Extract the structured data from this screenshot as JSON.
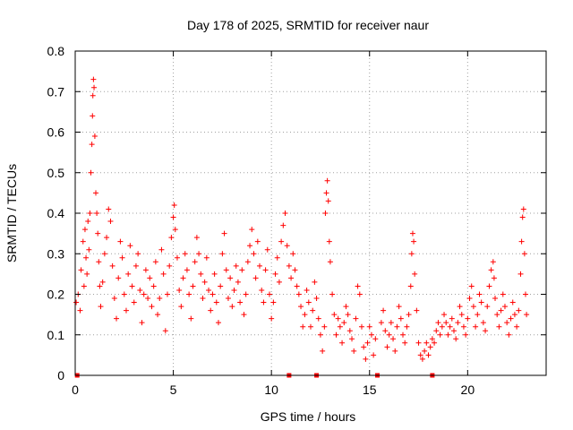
{
  "chart_data": {
    "type": "scatter",
    "title": "Day 178 of 2025, SRMTID for receiver naur",
    "xlabel": "GPS time / hours",
    "ylabel": "SRMTID / TECUs",
    "xlim": [
      0,
      24
    ],
    "ylim": [
      0,
      0.8
    ],
    "x_ticks": [
      0,
      5,
      10,
      15,
      20
    ],
    "y_ticks": [
      0,
      0.1,
      0.2,
      0.3,
      0.4,
      0.5,
      0.6,
      0.7,
      0.8
    ],
    "y_tick_labels": [
      "0",
      "0.1",
      "0.2",
      "0.3",
      "0.4",
      "0.5",
      "0.6",
      "0.7",
      "0.8"
    ],
    "grid": true,
    "marker": "plus",
    "series": [
      {
        "name": "SRMTID",
        "color": "#ff0000",
        "points": [
          [
            0.05,
            0.18
          ],
          [
            0.15,
            0.2
          ],
          [
            0.25,
            0.16
          ],
          [
            0.3,
            0.26
          ],
          [
            0.4,
            0.33
          ],
          [
            0.45,
            0.22
          ],
          [
            0.5,
            0.36
          ],
          [
            0.55,
            0.29
          ],
          [
            0.6,
            0.25
          ],
          [
            0.65,
            0.38
          ],
          [
            0.7,
            0.31
          ],
          [
            0.75,
            0.4
          ],
          [
            0.8,
            0.5
          ],
          [
            0.85,
            0.57
          ],
          [
            0.88,
            0.64
          ],
          [
            0.9,
            0.69
          ],
          [
            0.93,
            0.73
          ],
          [
            0.96,
            0.71
          ],
          [
            1.0,
            0.59
          ],
          [
            1.05,
            0.45
          ],
          [
            1.1,
            0.4
          ],
          [
            1.15,
            0.35
          ],
          [
            1.2,
            0.28
          ],
          [
            1.25,
            0.22
          ],
          [
            1.3,
            0.17
          ],
          [
            1.4,
            0.23
          ],
          [
            1.5,
            0.3
          ],
          [
            1.6,
            0.34
          ],
          [
            1.7,
            0.41
          ],
          [
            1.8,
            0.38
          ],
          [
            1.9,
            0.27
          ],
          [
            2.0,
            0.19
          ],
          [
            2.1,
            0.14
          ],
          [
            2.2,
            0.24
          ],
          [
            2.3,
            0.33
          ],
          [
            2.4,
            0.29
          ],
          [
            2.5,
            0.2
          ],
          [
            2.6,
            0.16
          ],
          [
            2.7,
            0.25
          ],
          [
            2.8,
            0.32
          ],
          [
            2.9,
            0.22
          ],
          [
            3.0,
            0.18
          ],
          [
            3.1,
            0.27
          ],
          [
            3.2,
            0.3
          ],
          [
            3.3,
            0.21
          ],
          [
            3.4,
            0.13
          ],
          [
            3.5,
            0.2
          ],
          [
            3.6,
            0.26
          ],
          [
            3.7,
            0.19
          ],
          [
            3.8,
            0.24
          ],
          [
            3.9,
            0.17
          ],
          [
            4.0,
            0.22
          ],
          [
            4.1,
            0.28
          ],
          [
            4.2,
            0.15
          ],
          [
            4.3,
            0.19
          ],
          [
            4.4,
            0.31
          ],
          [
            4.5,
            0.25
          ],
          [
            4.6,
            0.11
          ],
          [
            4.7,
            0.2
          ],
          [
            4.8,
            0.27
          ],
          [
            4.9,
            0.34
          ],
          [
            5.0,
            0.39
          ],
          [
            5.05,
            0.42
          ],
          [
            5.1,
            0.36
          ],
          [
            5.2,
            0.29
          ],
          [
            5.3,
            0.21
          ],
          [
            5.4,
            0.17
          ],
          [
            5.5,
            0.24
          ],
          [
            5.6,
            0.3
          ],
          [
            5.7,
            0.26
          ],
          [
            5.8,
            0.2
          ],
          [
            5.9,
            0.14
          ],
          [
            6.0,
            0.22
          ],
          [
            6.1,
            0.28
          ],
          [
            6.2,
            0.34
          ],
          [
            6.3,
            0.3
          ],
          [
            6.4,
            0.25
          ],
          [
            6.5,
            0.19
          ],
          [
            6.6,
            0.23
          ],
          [
            6.7,
            0.29
          ],
          [
            6.8,
            0.21
          ],
          [
            6.9,
            0.16
          ],
          [
            7.0,
            0.2
          ],
          [
            7.1,
            0.25
          ],
          [
            7.2,
            0.18
          ],
          [
            7.3,
            0.13
          ],
          [
            7.4,
            0.22
          ],
          [
            7.5,
            0.3
          ],
          [
            7.6,
            0.35
          ],
          [
            7.7,
            0.26
          ],
          [
            7.8,
            0.19
          ],
          [
            7.9,
            0.24
          ],
          [
            8.0,
            0.17
          ],
          [
            8.1,
            0.21
          ],
          [
            8.2,
            0.27
          ],
          [
            8.3,
            0.23
          ],
          [
            8.4,
            0.18
          ],
          [
            8.5,
            0.26
          ],
          [
            8.6,
            0.15
          ],
          [
            8.7,
            0.2
          ],
          [
            8.8,
            0.28
          ],
          [
            8.9,
            0.32
          ],
          [
            9.0,
            0.36
          ],
          [
            9.1,
            0.3
          ],
          [
            9.2,
            0.24
          ],
          [
            9.3,
            0.33
          ],
          [
            9.4,
            0.27
          ],
          [
            9.5,
            0.21
          ],
          [
            9.6,
            0.18
          ],
          [
            9.7,
            0.26
          ],
          [
            9.8,
            0.31
          ],
          [
            9.9,
            0.2
          ],
          [
            10.0,
            0.14
          ],
          [
            10.1,
            0.18
          ],
          [
            10.2,
            0.25
          ],
          [
            10.3,
            0.29
          ],
          [
            10.4,
            0.23
          ],
          [
            10.5,
            0.33
          ],
          [
            10.6,
            0.37
          ],
          [
            10.7,
            0.4
          ],
          [
            10.8,
            0.32
          ],
          [
            10.9,
            0.27
          ],
          [
            11.0,
            0.24
          ],
          [
            11.1,
            0.3
          ],
          [
            11.2,
            0.26
          ],
          [
            11.3,
            0.22
          ],
          [
            11.4,
            0.2
          ],
          [
            11.5,
            0.17
          ],
          [
            11.6,
            0.12
          ],
          [
            11.7,
            0.15
          ],
          [
            11.8,
            0.21
          ],
          [
            11.9,
            0.18
          ],
          [
            12.0,
            0.12
          ],
          [
            12.1,
            0.16
          ],
          [
            12.2,
            0.23
          ],
          [
            12.3,
            0.19
          ],
          [
            12.4,
            0.14
          ],
          [
            12.5,
            0.1
          ],
          [
            12.6,
            0.06
          ],
          [
            12.7,
            0.12
          ],
          [
            12.75,
            0.4
          ],
          [
            12.8,
            0.45
          ],
          [
            12.85,
            0.48
          ],
          [
            12.9,
            0.43
          ],
          [
            12.95,
            0.33
          ],
          [
            13.0,
            0.28
          ],
          [
            13.1,
            0.2
          ],
          [
            13.2,
            0.15
          ],
          [
            13.3,
            0.1
          ],
          [
            13.4,
            0.14
          ],
          [
            13.5,
            0.12
          ],
          [
            13.6,
            0.08
          ],
          [
            13.7,
            0.13
          ],
          [
            13.8,
            0.17
          ],
          [
            13.9,
            0.15
          ],
          [
            14.0,
            0.11
          ],
          [
            14.1,
            0.09
          ],
          [
            14.2,
            0.06
          ],
          [
            14.3,
            0.14
          ],
          [
            14.4,
            0.22
          ],
          [
            14.5,
            0.2
          ],
          [
            14.6,
            0.12
          ],
          [
            14.7,
            0.07
          ],
          [
            14.8,
            0.04
          ],
          [
            14.9,
            0.08
          ],
          [
            15.0,
            0.12
          ],
          [
            15.1,
            0.1
          ],
          [
            15.2,
            0.05
          ],
          [
            15.3,
            0.09
          ],
          [
            15.6,
            0.13
          ],
          [
            15.7,
            0.16
          ],
          [
            15.8,
            0.11
          ],
          [
            15.9,
            0.07
          ],
          [
            16.0,
            0.1
          ],
          [
            16.1,
            0.13
          ],
          [
            16.2,
            0.09
          ],
          [
            16.3,
            0.06
          ],
          [
            16.4,
            0.12
          ],
          [
            16.5,
            0.17
          ],
          [
            16.6,
            0.14
          ],
          [
            16.7,
            0.1
          ],
          [
            16.8,
            0.08
          ],
          [
            16.9,
            0.12
          ],
          [
            17.0,
            0.15
          ],
          [
            17.1,
            0.22
          ],
          [
            17.15,
            0.3
          ],
          [
            17.2,
            0.35
          ],
          [
            17.25,
            0.33
          ],
          [
            17.3,
            0.25
          ],
          [
            17.4,
            0.16
          ],
          [
            17.5,
            0.08
          ],
          [
            17.6,
            0.05
          ],
          [
            17.7,
            0.04
          ],
          [
            17.8,
            0.06
          ],
          [
            17.9,
            0.08
          ],
          [
            18.0,
            0.05
          ],
          [
            18.1,
            0.07
          ],
          [
            18.2,
            0.09
          ],
          [
            18.3,
            0.08
          ],
          [
            18.4,
            0.11
          ],
          [
            18.5,
            0.13
          ],
          [
            18.6,
            0.1
          ],
          [
            18.7,
            0.12
          ],
          [
            18.8,
            0.15
          ],
          [
            18.9,
            0.13
          ],
          [
            19.0,
            0.1
          ],
          [
            19.1,
            0.12
          ],
          [
            19.2,
            0.14
          ],
          [
            19.3,
            0.11
          ],
          [
            19.4,
            0.09
          ],
          [
            19.5,
            0.13
          ],
          [
            19.6,
            0.17
          ],
          [
            19.7,
            0.15
          ],
          [
            19.8,
            0.12
          ],
          [
            19.9,
            0.1
          ],
          [
            20.0,
            0.14
          ],
          [
            20.1,
            0.19
          ],
          [
            20.2,
            0.22
          ],
          [
            20.3,
            0.17
          ],
          [
            20.4,
            0.12
          ],
          [
            20.5,
            0.15
          ],
          [
            20.6,
            0.2
          ],
          [
            20.7,
            0.18
          ],
          [
            20.8,
            0.13
          ],
          [
            20.9,
            0.11
          ],
          [
            21.0,
            0.17
          ],
          [
            21.1,
            0.22
          ],
          [
            21.2,
            0.26
          ],
          [
            21.3,
            0.28
          ],
          [
            21.35,
            0.24
          ],
          [
            21.4,
            0.19
          ],
          [
            21.5,
            0.15
          ],
          [
            21.6,
            0.12
          ],
          [
            21.7,
            0.16
          ],
          [
            21.8,
            0.2
          ],
          [
            21.9,
            0.17
          ],
          [
            22.0,
            0.13
          ],
          [
            22.1,
            0.1
          ],
          [
            22.2,
            0.14
          ],
          [
            22.3,
            0.18
          ],
          [
            22.4,
            0.15
          ],
          [
            22.5,
            0.12
          ],
          [
            22.6,
            0.16
          ],
          [
            22.7,
            0.25
          ],
          [
            22.75,
            0.33
          ],
          [
            22.8,
            0.39
          ],
          [
            22.85,
            0.41
          ],
          [
            22.9,
            0.3
          ],
          [
            22.95,
            0.2
          ],
          [
            23.0,
            0.15
          ]
        ],
        "zero_points": [
          0.1,
          10.9,
          12.3,
          15.4,
          18.2
        ]
      }
    ]
  }
}
